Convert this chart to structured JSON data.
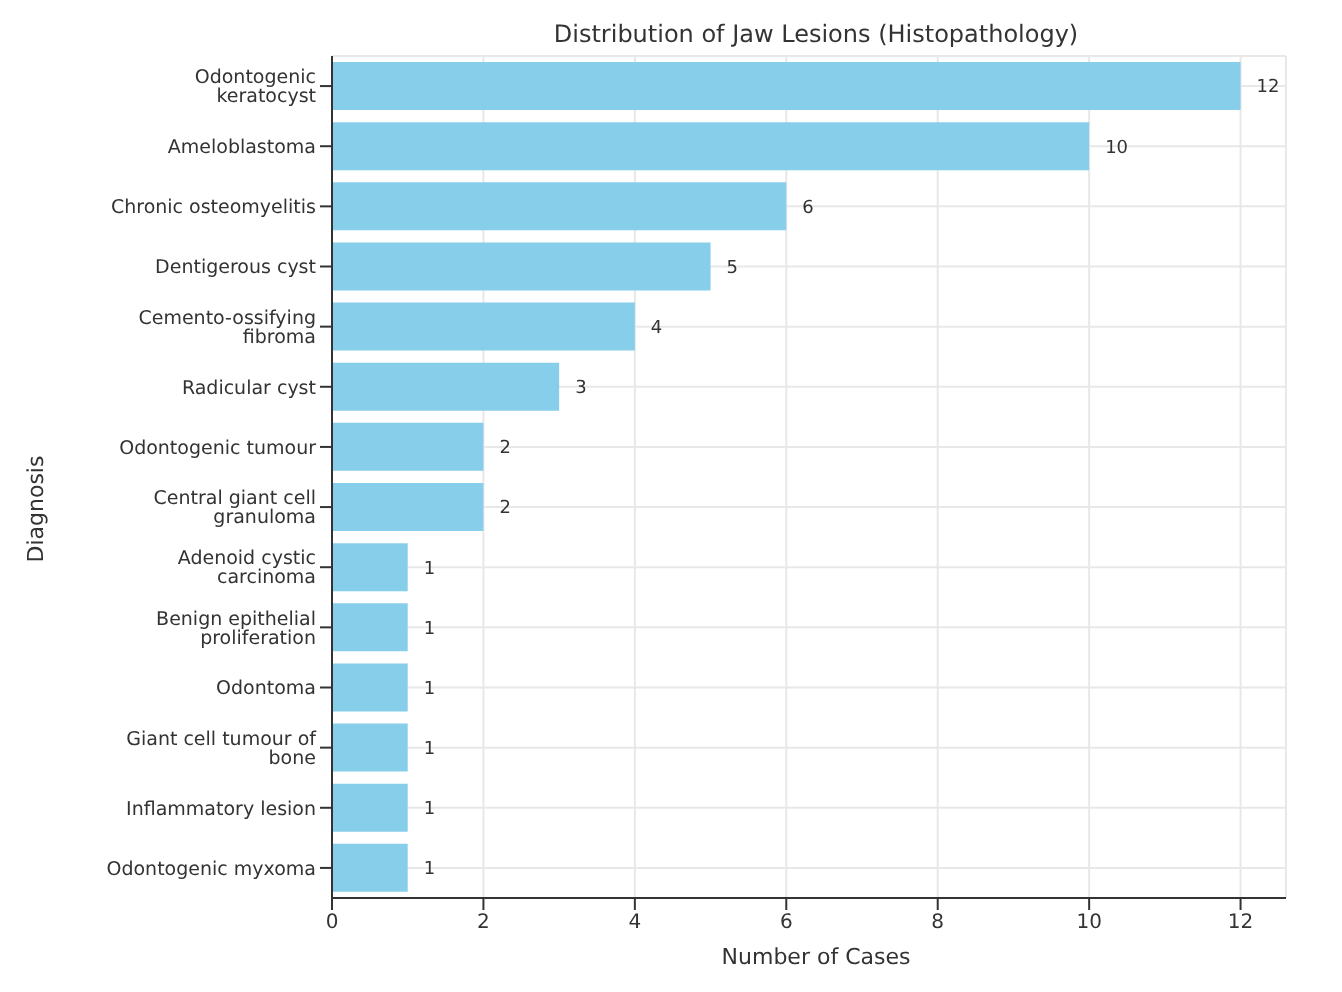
{
  "chart_data": {
    "type": "bar",
    "orientation": "horizontal",
    "title": "Distribution of Jaw Lesions (Histopathology)",
    "xlabel": "Number of Cases",
    "ylabel": "Diagnosis",
    "categories": [
      "Odontogenic keratocyst",
      "Ameloblastoma",
      "Chronic osteomyelitis",
      "Dentigerous cyst",
      "Cemento-ossifying fibroma",
      "Radicular cyst",
      "Odontogenic tumour",
      "Central giant cell granuloma",
      "Adenoid cystic carcinoma",
      "Benign epithelial proliferation",
      "Odontoma",
      "Giant cell tumour of bone",
      "Inflammatory lesion",
      "Odontogenic myxoma"
    ],
    "values": [
      12,
      10,
      6,
      5,
      4,
      3,
      2,
      2,
      1,
      1,
      1,
      1,
      1,
      1
    ],
    "color": "#87ceeb",
    "xlim": [
      0,
      12.6
    ],
    "xticks": [
      0,
      2,
      4,
      6,
      8,
      10,
      12
    ],
    "grid": true,
    "data_labels": true
  }
}
